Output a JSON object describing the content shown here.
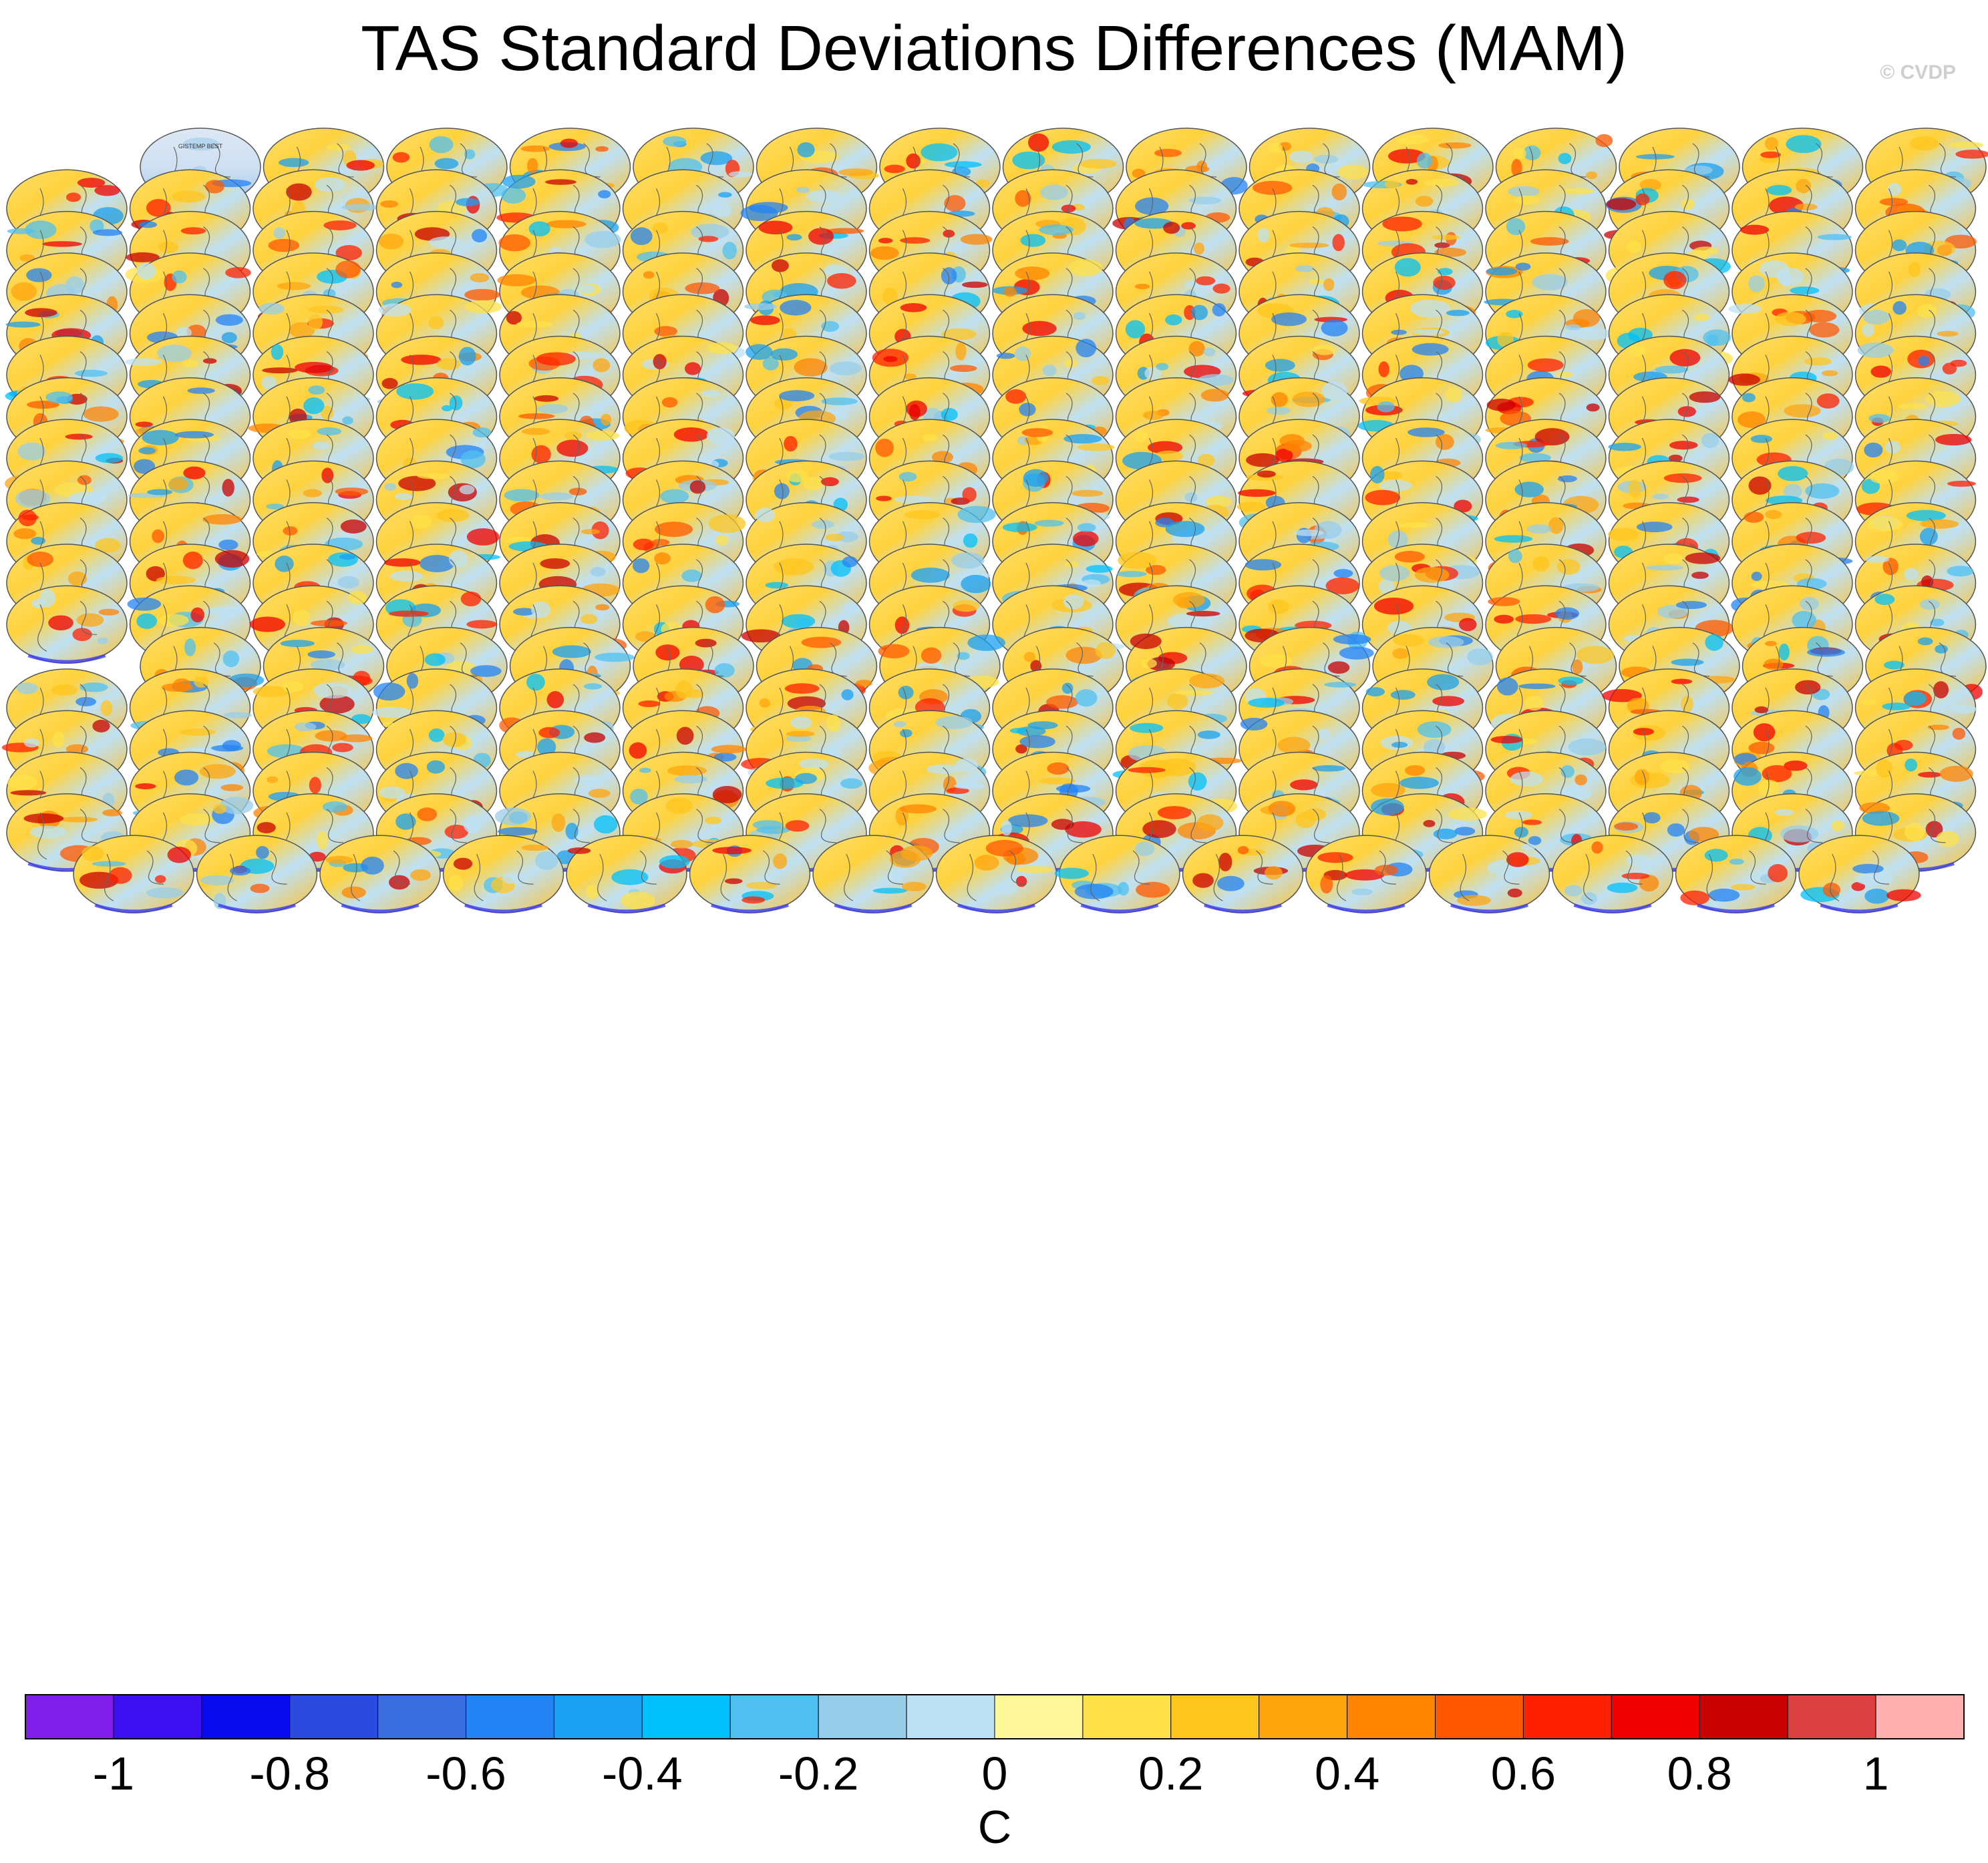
{
  "figure": {
    "title": "TAS Standard Deviations Differences (MAM)",
    "credit": "© CVDP"
  },
  "chart_data": {
    "type": "heatmap",
    "title": "TAS Standard Deviations Differences (MAM)",
    "description_variable": "TAS",
    "season": "MAM",
    "panel_rows": [
      16,
      16,
      16,
      16,
      16,
      16,
      16,
      16,
      16,
      16,
      16,
      16,
      15,
      16,
      16,
      16,
      16,
      15
    ],
    "panel_titles": {
      "first": "GISTEMP BEST"
    },
    "colorbar": {
      "unit_label": "C",
      "levels": [
        -1.1,
        -1.0,
        -0.9,
        -0.8,
        -0.7,
        -0.6,
        -0.5,
        -0.4,
        -0.3,
        -0.2,
        -0.1,
        0.0,
        0.1,
        0.2,
        0.3,
        0.4,
        0.5,
        0.6,
        0.7,
        0.8,
        0.9,
        1.0,
        1.1
      ],
      "tick_labels": [
        "-1",
        "-0.8",
        "-0.6",
        "-0.4",
        "-0.2",
        "0",
        "0.2",
        "0.4",
        "0.6",
        "0.8",
        "1"
      ],
      "tick_values": [
        -1,
        -0.8,
        -0.6,
        -0.4,
        -0.2,
        0,
        0.2,
        0.4,
        0.6,
        0.8,
        1
      ],
      "range": [
        -1.1,
        1.1
      ],
      "colors": [
        "#7f1fe9",
        "#3b0ff0",
        "#0a0cf0",
        "#2b4be0",
        "#3a6ee0",
        "#2383f4",
        "#19a0f0",
        "#00c0fa",
        "#50c0f0",
        "#98cde9",
        "#bde2f4",
        "#fff89a",
        "#ffe24a",
        "#ffc61e",
        "#ffa50e",
        "#ff8400",
        "#ff5800",
        "#ff2000",
        "#f00000",
        "#c80000",
        "#dc4040",
        "#ffb0b0"
      ]
    }
  }
}
